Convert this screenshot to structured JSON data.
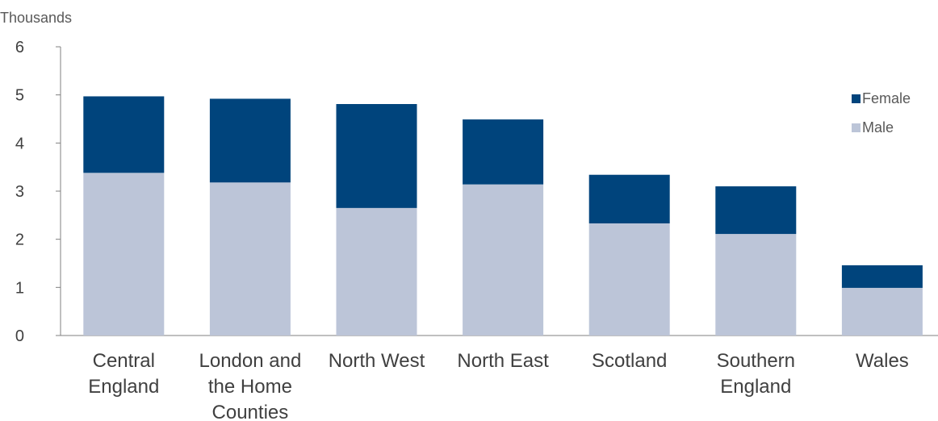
{
  "chart_data": {
    "type": "bar",
    "stacked": true,
    "unit_label": "Thousands",
    "categories": [
      [
        "Central",
        "England"
      ],
      [
        "London and",
        "the Home",
        "Counties"
      ],
      [
        "North West"
      ],
      [
        "North East"
      ],
      [
        "Scotland"
      ],
      [
        "Southern",
        "England"
      ],
      [
        "Wales"
      ]
    ],
    "series": [
      {
        "name": "Male",
        "color": "#bcc5d8",
        "values": [
          3.38,
          3.18,
          2.65,
          3.14,
          2.33,
          2.11,
          0.99
        ]
      },
      {
        "name": "Female",
        "color": "#00447c",
        "values": [
          1.59,
          1.74,
          2.16,
          1.35,
          1.01,
          0.99,
          0.47
        ]
      }
    ],
    "ylim": [
      0,
      6
    ],
    "yticks": [
      "0",
      "1",
      "2",
      "3",
      "4",
      "5",
      "6"
    ],
    "grid": false,
    "legend_position": "right",
    "legend_order": [
      "Female",
      "Male"
    ]
  }
}
